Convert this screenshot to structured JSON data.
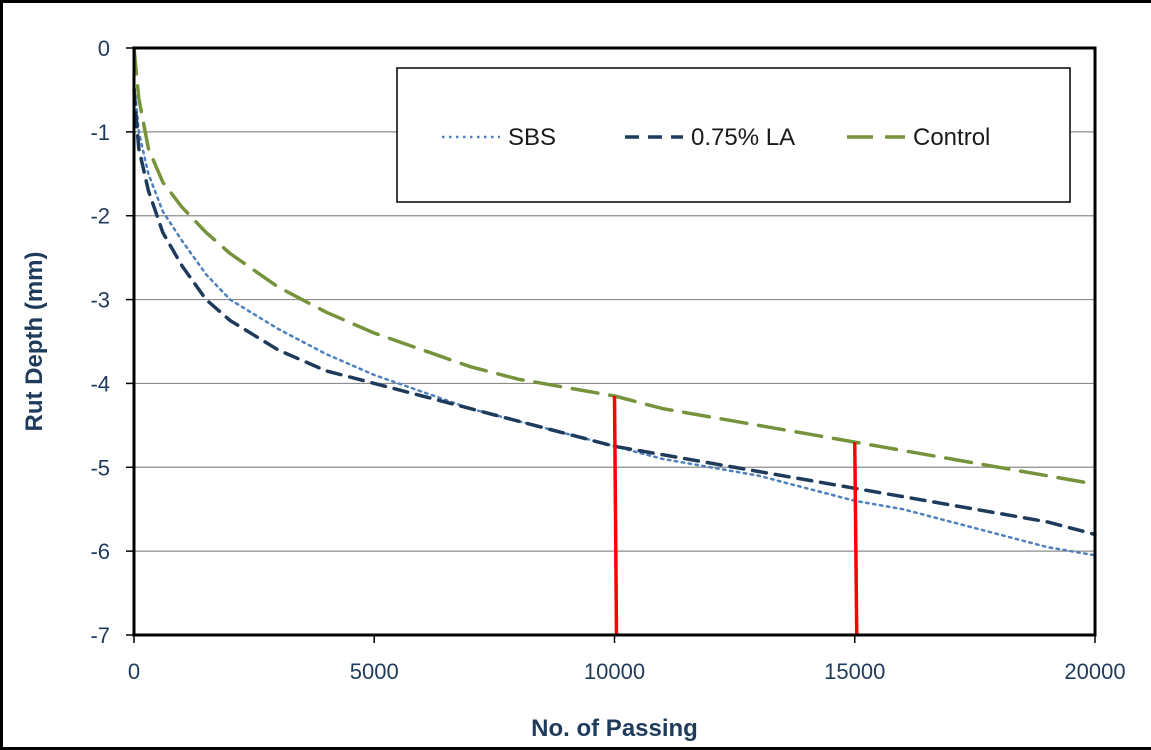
{
  "chart_data": {
    "type": "line",
    "title": "",
    "xlabel": "No. of Passing",
    "ylabel": "Rut Depth (mm)",
    "xlim": [
      0,
      20000
    ],
    "ylim": [
      -7,
      0
    ],
    "x_ticks": [
      "0",
      "5000",
      "10000",
      "15000",
      "20000"
    ],
    "y_ticks": [
      "0",
      "-1",
      "-2",
      "-3",
      "-4",
      "-5",
      "-6",
      "-7"
    ],
    "grid": "horizontal",
    "legend_position": "top-right",
    "series": [
      {
        "name": "SBS",
        "color": "#4f81bd",
        "style": "dotted",
        "x": [
          0,
          100,
          300,
          600,
          1000,
          1500,
          2000,
          3000,
          4000,
          5000,
          6000,
          7000,
          8000,
          9000,
          10000,
          11000,
          12000,
          13000,
          14000,
          15000,
          16000,
          17000,
          18000,
          19000,
          20000
        ],
        "y": [
          -0.4,
          -1.0,
          -1.5,
          -1.95,
          -2.3,
          -2.7,
          -3.0,
          -3.35,
          -3.65,
          -3.9,
          -4.1,
          -4.3,
          -4.45,
          -4.6,
          -4.75,
          -4.9,
          -5.0,
          -5.1,
          -5.25,
          -5.4,
          -5.5,
          -5.65,
          -5.8,
          -5.95,
          -6.05
        ]
      },
      {
        "name": "0.75% LA",
        "color": "#1f3b5c",
        "style": "dashed",
        "x": [
          0,
          100,
          300,
          600,
          1000,
          1500,
          2000,
          3000,
          4000,
          5000,
          6000,
          7000,
          8000,
          9000,
          10000,
          11000,
          12000,
          13000,
          14000,
          15000,
          16000,
          17000,
          18000,
          19000,
          20000
        ],
        "y": [
          -0.5,
          -1.2,
          -1.7,
          -2.2,
          -2.6,
          -3.0,
          -3.25,
          -3.6,
          -3.85,
          -4.0,
          -4.15,
          -4.3,
          -4.45,
          -4.6,
          -4.75,
          -4.85,
          -4.95,
          -5.05,
          -5.15,
          -5.25,
          -5.35,
          -5.45,
          -5.55,
          -5.65,
          -5.8
        ]
      },
      {
        "name": "Control",
        "color": "#76933c",
        "style": "long-dash",
        "x": [
          0,
          100,
          300,
          600,
          1000,
          1500,
          2000,
          3000,
          4000,
          5000,
          6000,
          7000,
          8000,
          9000,
          10000,
          11000,
          12000,
          13000,
          14000,
          15000,
          16000,
          17000,
          18000,
          19000,
          20000
        ],
        "y": [
          0,
          -0.6,
          -1.2,
          -1.6,
          -1.9,
          -2.2,
          -2.45,
          -2.85,
          -3.15,
          -3.4,
          -3.6,
          -3.8,
          -3.95,
          -4.05,
          -4.15,
          -4.3,
          -4.4,
          -4.5,
          -4.6,
          -4.7,
          -4.8,
          -4.9,
          -5.0,
          -5.1,
          -5.2
        ]
      }
    ],
    "markers": [
      {
        "color": "#ff0000",
        "x": 10000,
        "y_top": -4.15,
        "y_bottom": -7
      },
      {
        "color": "#ff0000",
        "x": 15000,
        "y_top": -4.7,
        "y_bottom": -7
      }
    ]
  }
}
